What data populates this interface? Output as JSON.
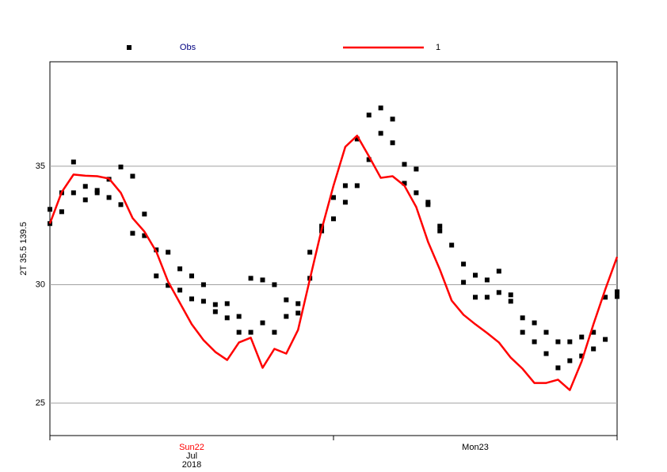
{
  "chart_data": {
    "type": "line",
    "y_label": "2T 35.5 139.5",
    "xlim": [
      0,
      48
    ],
    "xticks": [
      0,
      24,
      48
    ],
    "x_date_labels": [
      {
        "value": 12,
        "label": "Sun22",
        "color": "#ff0000",
        "sub": [
          "Jul",
          "2018"
        ]
      },
      {
        "value": 36,
        "label": "Mon23",
        "color": "#000000"
      }
    ],
    "ylim": [
      23.63,
      39.41
    ],
    "yticks": [
      25,
      30,
      35
    ],
    "grid": true,
    "series": [
      {
        "name": "Obs",
        "type": "scatter",
        "color": "#000000",
        "x": [
          0,
          0,
          1,
          1,
          2,
          2,
          3,
          3,
          4,
          4,
          5,
          5,
          6,
          6,
          7,
          7,
          8,
          8,
          9,
          9,
          10,
          10,
          11,
          11,
          12,
          12,
          13,
          13,
          14,
          14,
          15,
          15,
          16,
          16,
          17,
          17,
          18,
          18,
          19,
          19,
          20,
          20,
          21,
          21,
          22,
          22,
          23,
          23,
          24,
          24,
          25,
          25,
          26,
          26,
          27,
          27,
          28,
          28,
          29,
          29,
          30,
          30,
          31,
          31,
          32,
          32,
          33,
          33,
          34,
          35,
          35,
          36,
          36,
          37,
          37,
          38,
          38,
          39,
          39,
          40,
          40,
          41,
          41,
          42,
          42,
          43,
          43,
          44,
          44,
          45,
          45,
          46,
          46,
          47,
          47,
          48,
          48
        ],
        "values": [
          33.18,
          32.58,
          33.88,
          33.08,
          35.18,
          33.88,
          34.15,
          33.58,
          33.98,
          33.88,
          34.45,
          33.68,
          34.97,
          33.38,
          34.58,
          32.17,
          32.98,
          32.07,
          31.47,
          30.37,
          31.37,
          29.97,
          30.67,
          29.77,
          30.37,
          29.4,
          30.0,
          29.3,
          29.16,
          28.86,
          29.2,
          28.6,
          28.66,
          27.99,
          30.27,
          27.99,
          30.2,
          28.39,
          30.0,
          27.99,
          29.36,
          28.66,
          29.2,
          28.8,
          31.37,
          30.27,
          32.47,
          32.27,
          33.68,
          32.78,
          34.18,
          33.48,
          36.15,
          34.18,
          37.16,
          35.28,
          37.46,
          36.39,
          36.99,
          35.99,
          35.08,
          34.28,
          34.88,
          33.88,
          33.48,
          33.38,
          32.47,
          32.27,
          31.67,
          30.87,
          30.1,
          30.4,
          29.47,
          30.2,
          29.47,
          30.57,
          29.67,
          29.57,
          29.3,
          28.6,
          27.99,
          28.39,
          27.59,
          27.99,
          27.09,
          27.59,
          26.49,
          27.59,
          26.79,
          27.79,
          26.99,
          27.99,
          27.29,
          29.47,
          27.69,
          29.7,
          29.5
        ]
      },
      {
        "name": "1",
        "type": "line",
        "color": "#ff0000",
        "x": [
          0,
          1,
          2,
          3,
          4,
          5,
          6,
          7,
          8,
          9,
          10,
          11,
          12,
          13,
          14,
          15,
          16,
          17,
          18,
          19,
          20,
          21,
          22,
          23,
          24,
          25,
          26,
          27,
          28,
          29,
          30,
          31,
          32,
          33,
          34,
          35,
          36,
          37,
          38,
          39,
          40,
          41,
          42,
          43,
          44,
          45,
          46,
          47,
          48
        ],
        "values": [
          32.58,
          33.91,
          34.65,
          34.6,
          34.58,
          34.48,
          33.88,
          32.81,
          32.24,
          31.4,
          30.13,
          29.23,
          28.33,
          27.66,
          27.16,
          26.82,
          27.56,
          27.76,
          26.49,
          27.29,
          27.09,
          28.09,
          30.23,
          32.34,
          34.18,
          35.82,
          36.29,
          35.42,
          34.51,
          34.58,
          34.18,
          33.28,
          31.81,
          30.64,
          29.33,
          28.73,
          28.33,
          27.96,
          27.56,
          26.92,
          26.45,
          25.85,
          25.85,
          25.99,
          25.55,
          26.76,
          28.33,
          29.8,
          31.17
        ]
      }
    ]
  }
}
